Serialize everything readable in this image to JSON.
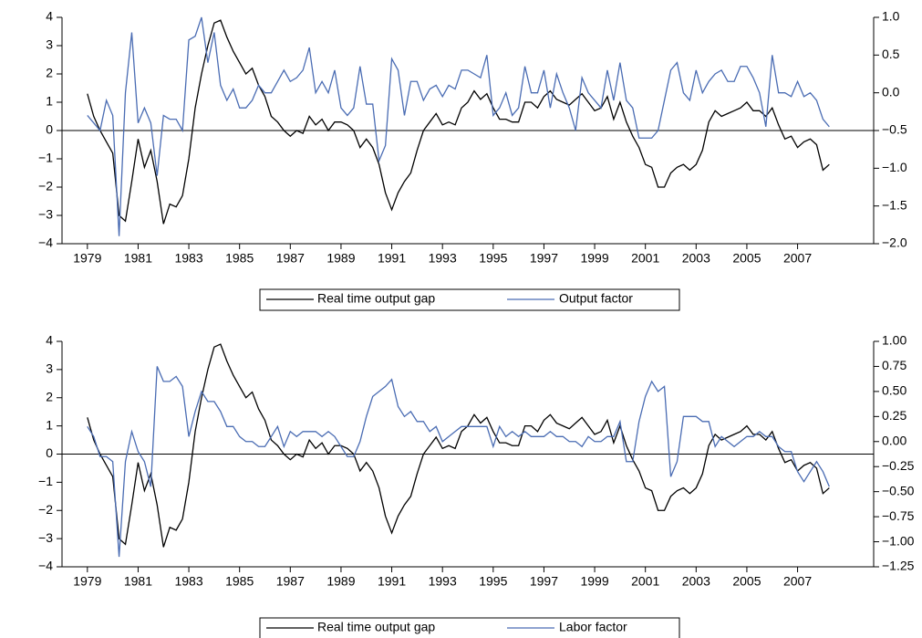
{
  "chart_data": [
    {
      "type": "line",
      "x": [
        1979,
        1979.25,
        1979.5,
        1979.75,
        1980,
        1980.25,
        1980.5,
        1980.75,
        1981,
        1981.25,
        1981.5,
        1981.75,
        1982,
        1982.25,
        1982.5,
        1982.75,
        1983,
        1983.25,
        1983.5,
        1983.75,
        1984,
        1984.25,
        1984.5,
        1984.75,
        1985,
        1985.25,
        1985.5,
        1985.75,
        1986,
        1986.25,
        1986.5,
        1986.75,
        1987,
        1987.25,
        1987.5,
        1987.75,
        1988,
        1988.25,
        1988.5,
        1988.75,
        1989,
        1989.25,
        1989.5,
        1989.75,
        1990,
        1990.25,
        1990.5,
        1990.75,
        1991,
        1991.25,
        1991.5,
        1991.75,
        1992,
        1992.25,
        1992.5,
        1992.75,
        1993,
        1993.25,
        1993.5,
        1993.75,
        1994,
        1994.25,
        1994.5,
        1994.75,
        1995,
        1995.25,
        1995.5,
        1995.75,
        1996,
        1996.25,
        1996.5,
        1996.75,
        1997,
        1997.25,
        1997.5,
        1997.75,
        1998,
        1998.25,
        1998.5,
        1998.75,
        1999,
        1999.25,
        1999.5,
        1999.75,
        2000,
        2000.25,
        2000.5,
        2000.75,
        2001,
        2001.25,
        2001.5,
        2001.75,
        2002,
        2002.25,
        2002.5,
        2002.75,
        2003,
        2003.25,
        2003.5,
        2003.75,
        2004,
        2004.25,
        2004.5,
        2004.75,
        2005,
        2005.25,
        2005.5,
        2005.75,
        2006,
        2006.25,
        2006.5,
        2006.75,
        2007,
        2007.25,
        2007.5,
        2007.75,
        2008,
        2008.25
      ],
      "xlim": [
        1978,
        2010
      ],
      "xticks": [
        1979,
        1981,
        1983,
        1985,
        1987,
        1989,
        1991,
        1993,
        1995,
        1997,
        1999,
        2001,
        2003,
        2005,
        2007
      ],
      "ylim": [
        -4,
        4
      ],
      "yticks": [
        {
          "value": -4,
          "label": "−4"
        },
        {
          "value": -3,
          "label": "−3"
        },
        {
          "value": -2,
          "label": "−2"
        },
        {
          "value": -1,
          "label": "−1"
        },
        0,
        1,
        2,
        3,
        4
      ],
      "y2lim": [
        -2,
        1
      ],
      "y2ticks": [
        {
          "value": -2,
          "label": "−2.0"
        },
        {
          "value": -1.5,
          "label": "−1.5"
        },
        {
          "value": -1,
          "label": "−1.0"
        },
        {
          "value": -0.5,
          "label": "−0.5"
        },
        {
          "value": 0,
          "label": "0.0"
        },
        {
          "value": 0.5,
          "label": "0.5"
        },
        {
          "value": 1,
          "label": "1.0"
        }
      ],
      "series": [
        {
          "name": "Real time output gap",
          "color": "#000000",
          "values": [
            1.3,
            0.5,
            0.0,
            -0.4,
            -0.8,
            -3.0,
            -3.2,
            -1.8,
            -0.3,
            -1.3,
            -0.7,
            -1.8,
            -3.3,
            -2.6,
            -2.7,
            -2.3,
            -1.0,
            0.8,
            2.0,
            3.0,
            3.8,
            3.9,
            3.3,
            2.8,
            2.4,
            2.0,
            2.2,
            1.6,
            1.2,
            0.5,
            0.3,
            0.0,
            -0.2,
            0.0,
            -0.1,
            0.5,
            0.2,
            0.4,
            0.0,
            0.3,
            0.3,
            0.2,
            0.0,
            -0.6,
            -0.3,
            -0.6,
            -1.2,
            -2.2,
            -2.8,
            -2.2,
            -1.8,
            -1.5,
            -0.7,
            0.0,
            0.3,
            0.6,
            0.2,
            0.3,
            0.2,
            0.8,
            1.0,
            1.4,
            1.1,
            1.3,
            0.8,
            0.4,
            0.4,
            0.3,
            0.3,
            1.0,
            1.0,
            0.8,
            1.2,
            1.4,
            1.1,
            1.0,
            0.9,
            1.1,
            1.3,
            1.0,
            0.7,
            0.8,
            1.2,
            0.4,
            1.0,
            0.3,
            -0.2,
            -0.6,
            -1.2,
            -1.3,
            -2.0,
            -2.0,
            -1.5,
            -1.3,
            -1.2,
            -1.4,
            -1.2,
            -0.7,
            0.3,
            0.7,
            0.5,
            0.6,
            0.7,
            0.8,
            1.0,
            0.7,
            0.7,
            0.5,
            0.8,
            0.2,
            -0.3,
            -0.2,
            -0.6,
            -0.4,
            -0.3,
            -0.5,
            -1.4,
            -1.2
          ]
        },
        {
          "name": "Output factor",
          "color": "#4a6cb3",
          "axis": "y2",
          "values": [
            -0.3,
            -0.4,
            -0.5,
            -0.1,
            -0.3,
            -1.9,
            0.0,
            0.8,
            -0.4,
            -0.2,
            -0.4,
            -1.1,
            -0.3,
            -0.35,
            -0.35,
            -0.5,
            0.7,
            0.75,
            1.0,
            0.4,
            0.8,
            0.1,
            -0.1,
            0.05,
            -0.2,
            -0.2,
            -0.1,
            0.1,
            0.0,
            0.0,
            0.15,
            0.3,
            0.15,
            0.2,
            0.3,
            0.6,
            0.0,
            0.15,
            0.0,
            0.3,
            -0.2,
            -0.3,
            -0.2,
            0.35,
            -0.15,
            -0.15,
            -0.9,
            -0.7,
            0.45,
            0.3,
            -0.3,
            0.15,
            0.15,
            -0.1,
            0.05,
            0.1,
            -0.05,
            0.1,
            0.05,
            0.3,
            0.3,
            0.25,
            0.2,
            0.5,
            -0.3,
            -0.2,
            0.0,
            -0.3,
            -0.2,
            0.35,
            0.0,
            0.0,
            0.3,
            -0.2,
            0.25,
            0.0,
            -0.2,
            -0.5,
            0.2,
            0.0,
            -0.1,
            -0.2,
            0.3,
            -0.1,
            0.4,
            -0.1,
            -0.2,
            -0.6,
            -0.6,
            -0.6,
            -0.5,
            -0.1,
            0.3,
            0.4,
            0.0,
            -0.1,
            0.3,
            0.0,
            0.15,
            0.25,
            0.3,
            0.15,
            0.15,
            0.35,
            0.35,
            0.2,
            0.0,
            -0.45,
            0.5,
            0.0,
            0.0,
            -0.05,
            0.15,
            -0.05,
            0.0,
            -0.1,
            -0.35,
            -0.45
          ]
        }
      ]
    },
    {
      "type": "line",
      "x": [
        1979,
        1979.25,
        1979.5,
        1979.75,
        1980,
        1980.25,
        1980.5,
        1980.75,
        1981,
        1981.25,
        1981.5,
        1981.75,
        1982,
        1982.25,
        1982.5,
        1982.75,
        1983,
        1983.25,
        1983.5,
        1983.75,
        1984,
        1984.25,
        1984.5,
        1984.75,
        1985,
        1985.25,
        1985.5,
        1985.75,
        1986,
        1986.25,
        1986.5,
        1986.75,
        1987,
        1987.25,
        1987.5,
        1987.75,
        1988,
        1988.25,
        1988.5,
        1988.75,
        1989,
        1989.25,
        1989.5,
        1989.75,
        1990,
        1990.25,
        1990.5,
        1990.75,
        1991,
        1991.25,
        1991.5,
        1991.75,
        1992,
        1992.25,
        1992.5,
        1992.75,
        1993,
        1993.25,
        1993.5,
        1993.75,
        1994,
        1994.25,
        1994.5,
        1994.75,
        1995,
        1995.25,
        1995.5,
        1995.75,
        1996,
        1996.25,
        1996.5,
        1996.75,
        1997,
        1997.25,
        1997.5,
        1997.75,
        1998,
        1998.25,
        1998.5,
        1998.75,
        1999,
        1999.25,
        1999.5,
        1999.75,
        2000,
        2000.25,
        2000.5,
        2000.75,
        2001,
        2001.25,
        2001.5,
        2001.75,
        2002,
        2002.25,
        2002.5,
        2002.75,
        2003,
        2003.25,
        2003.5,
        2003.75,
        2004,
        2004.25,
        2004.5,
        2004.75,
        2005,
        2005.25,
        2005.5,
        2005.75,
        2006,
        2006.25,
        2006.5,
        2006.75,
        2007,
        2007.25,
        2007.5,
        2007.75,
        2008,
        2008.25
      ],
      "xlim": [
        1978,
        2010
      ],
      "xticks": [
        1979,
        1981,
        1983,
        1985,
        1987,
        1989,
        1991,
        1993,
        1995,
        1997,
        1999,
        2001,
        2003,
        2005,
        2007
      ],
      "ylim": [
        -4,
        4
      ],
      "yticks": [
        {
          "value": -4,
          "label": "−4"
        },
        {
          "value": -3,
          "label": "−3"
        },
        {
          "value": -2,
          "label": "−2"
        },
        {
          "value": -1,
          "label": "−1"
        },
        0,
        1,
        2,
        3,
        4
      ],
      "y2lim": [
        -1.25,
        1
      ],
      "y2ticks": [
        {
          "value": -1.25,
          "label": "−1.25"
        },
        {
          "value": -1,
          "label": "−1.00"
        },
        {
          "value": -0.75,
          "label": "−0.75"
        },
        {
          "value": -0.5,
          "label": "−0.50"
        },
        {
          "value": -0.25,
          "label": "−0.25"
        },
        {
          "value": 0,
          "label": "0.00"
        },
        {
          "value": 0.25,
          "label": "0.25"
        },
        {
          "value": 0.5,
          "label": "0.50"
        },
        {
          "value": 0.75,
          "label": "0.75"
        },
        {
          "value": 1,
          "label": "1.00"
        }
      ],
      "series": [
        {
          "name": "Real time output gap",
          "color": "#000000",
          "values": [
            1.3,
            0.5,
            0.0,
            -0.4,
            -0.8,
            -3.0,
            -3.2,
            -1.8,
            -0.3,
            -1.3,
            -0.7,
            -1.8,
            -3.3,
            -2.6,
            -2.7,
            -2.3,
            -1.0,
            0.8,
            2.0,
            3.0,
            3.8,
            3.9,
            3.3,
            2.8,
            2.4,
            2.0,
            2.2,
            1.6,
            1.2,
            0.5,
            0.3,
            0.0,
            -0.2,
            0.0,
            -0.1,
            0.5,
            0.2,
            0.4,
            0.0,
            0.3,
            0.3,
            0.2,
            0.0,
            -0.6,
            -0.3,
            -0.6,
            -1.2,
            -2.2,
            -2.8,
            -2.2,
            -1.8,
            -1.5,
            -0.7,
            0.0,
            0.3,
            0.6,
            0.2,
            0.3,
            0.2,
            0.8,
            1.0,
            1.4,
            1.1,
            1.3,
            0.8,
            0.4,
            0.4,
            0.3,
            0.3,
            1.0,
            1.0,
            0.8,
            1.2,
            1.4,
            1.1,
            1.0,
            0.9,
            1.1,
            1.3,
            1.0,
            0.7,
            0.8,
            1.2,
            0.4,
            1.0,
            0.3,
            -0.2,
            -0.6,
            -1.2,
            -1.3,
            -2.0,
            -2.0,
            -1.5,
            -1.3,
            -1.2,
            -1.4,
            -1.2,
            -0.7,
            0.3,
            0.7,
            0.5,
            0.6,
            0.7,
            0.8,
            1.0,
            0.7,
            0.7,
            0.5,
            0.8,
            0.2,
            -0.3,
            -0.2,
            -0.6,
            -0.4,
            -0.3,
            -0.5,
            -1.4,
            -1.2
          ]
        },
        {
          "name": "Labor factor",
          "color": "#4a6cb3",
          "axis": "y2",
          "values": [
            0.15,
            0.05,
            -0.15,
            -0.15,
            -0.2,
            -1.15,
            -0.2,
            0.1,
            -0.1,
            -0.2,
            -0.45,
            0.75,
            0.6,
            0.6,
            0.65,
            0.55,
            0.05,
            0.3,
            0.5,
            0.4,
            0.4,
            0.3,
            0.15,
            0.15,
            0.05,
            0.0,
            0.0,
            -0.05,
            -0.05,
            0.05,
            0.15,
            -0.05,
            0.1,
            0.05,
            0.1,
            0.1,
            0.1,
            0.05,
            0.1,
            0.05,
            -0.05,
            -0.15,
            -0.15,
            0.0,
            0.25,
            0.45,
            0.5,
            0.55,
            0.62,
            0.35,
            0.25,
            0.3,
            0.2,
            0.2,
            0.1,
            0.15,
            0.0,
            0.05,
            0.1,
            0.15,
            0.15,
            0.15,
            0.15,
            0.15,
            -0.05,
            0.15,
            0.05,
            0.1,
            0.05,
            0.1,
            0.05,
            0.05,
            0.05,
            0.1,
            0.05,
            0.05,
            0.0,
            0.0,
            -0.05,
            0.05,
            0.0,
            0.0,
            0.05,
            0.05,
            0.2,
            -0.2,
            -0.2,
            0.2,
            0.45,
            0.6,
            0.5,
            0.55,
            -0.35,
            -0.2,
            0.25,
            0.25,
            0.25,
            0.2,
            0.2,
            -0.05,
            0.05,
            0.0,
            -0.05,
            0.0,
            0.05,
            0.05,
            0.1,
            0.05,
            0.05,
            -0.05,
            -0.1,
            -0.1,
            -0.3,
            -0.4,
            -0.3,
            -0.2,
            -0.3,
            -0.45
          ]
        }
      ]
    }
  ]
}
